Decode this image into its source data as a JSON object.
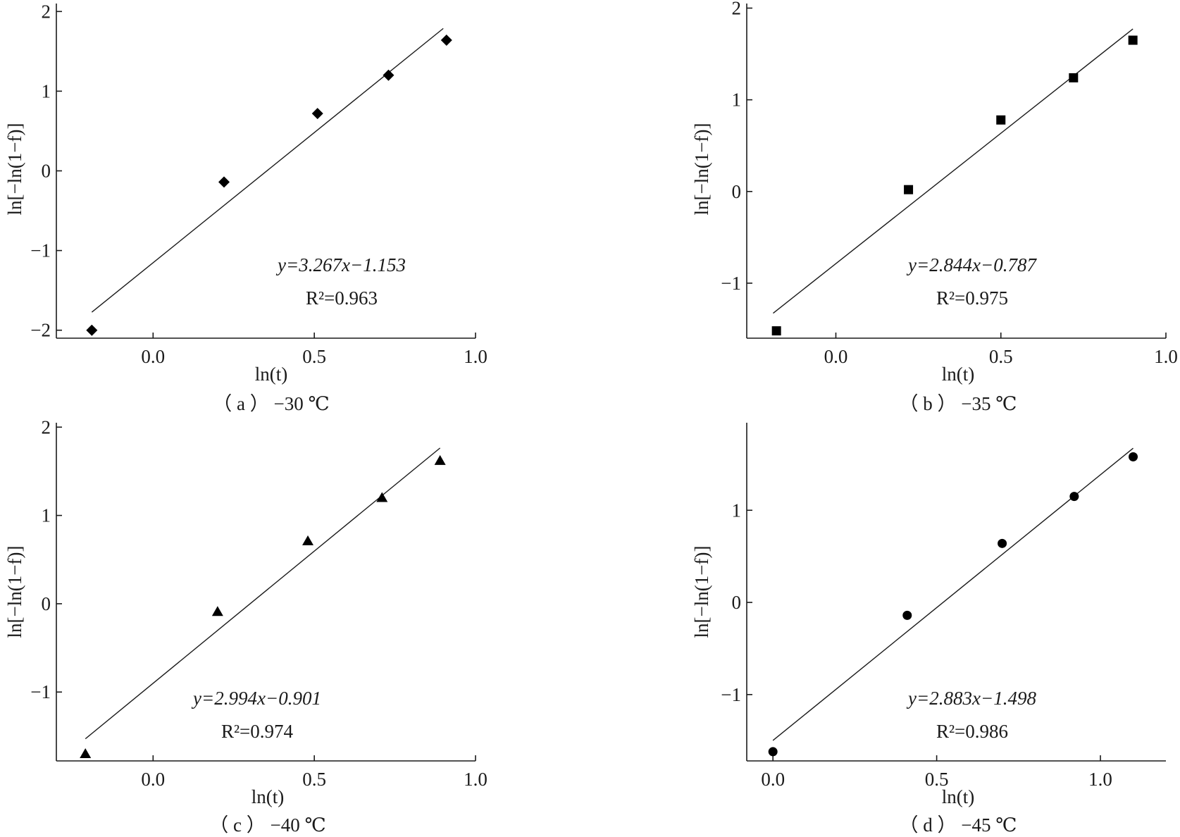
{
  "chart_data": [
    {
      "type": "scatter",
      "marker": "diamond",
      "caption": "（ a ） −30 ℃",
      "xlabel": "ln(t)",
      "ylabel": "ln[−ln(1−f)]",
      "xlim": [
        -0.3,
        1.0
      ],
      "ylim": [
        -2.1,
        2.1
      ],
      "xticks": [
        0.0,
        0.5,
        1.0
      ],
      "xtick_labels": [
        "0.0",
        "0.5",
        "1.0"
      ],
      "yticks": [
        -2,
        -1,
        0,
        1,
        2
      ],
      "ytick_labels": [
        "−2",
        "−1",
        "0",
        "1",
        "2"
      ],
      "points": [
        {
          "x": -0.19,
          "y": -2.0
        },
        {
          "x": 0.22,
          "y": -0.14
        },
        {
          "x": 0.51,
          "y": 0.72
        },
        {
          "x": 0.73,
          "y": 1.2
        },
        {
          "x": 0.91,
          "y": 1.64
        }
      ],
      "fit": {
        "slope": 3.267,
        "intercept": -1.153,
        "x_range": [
          -0.19,
          0.9
        ]
      },
      "equation": "y=3.267x−1.153",
      "r2_label": "R²=0.963",
      "grid": false
    },
    {
      "type": "scatter",
      "marker": "square",
      "caption": "（ b ） −35 ℃",
      "xlabel": "ln(t)",
      "ylabel": "ln[−ln(1−f)]",
      "xlim": [
        -0.27,
        1.0
      ],
      "ylim": [
        -1.6,
        2.05
      ],
      "xticks": [
        0.0,
        0.5,
        1.0
      ],
      "xtick_labels": [
        "0.0",
        "0.5",
        "1.0"
      ],
      "yticks": [
        -1,
        0,
        1,
        2
      ],
      "ytick_labels": [
        "−1",
        "0",
        "1",
        "2"
      ],
      "points": [
        {
          "x": -0.18,
          "y": -1.52
        },
        {
          "x": 0.22,
          "y": 0.02
        },
        {
          "x": 0.5,
          "y": 0.78
        },
        {
          "x": 0.72,
          "y": 1.24
        },
        {
          "x": 0.9,
          "y": 1.65
        }
      ],
      "fit": {
        "slope": 2.844,
        "intercept": -0.787,
        "x_range": [
          -0.19,
          0.9
        ]
      },
      "equation": "y=2.844x−0.787",
      "r2_label": "R²=0.975",
      "grid": false
    },
    {
      "type": "scatter",
      "marker": "triangle",
      "caption": "（ c ） −40 ℃",
      "xlabel": "ln(t)",
      "ylabel": "ln[−ln(1−f)]",
      "xlim": [
        -0.3,
        1.0
      ],
      "ylim": [
        -1.78,
        2.05
      ],
      "xticks": [
        0.0,
        0.5,
        1.0
      ],
      "xtick_labels": [
        "0.0",
        "0.5",
        "1.0"
      ],
      "yticks": [
        -1,
        0,
        1,
        2
      ],
      "ytick_labels": [
        "−1",
        "0",
        "1",
        "2"
      ],
      "points": [
        {
          "x": -0.21,
          "y": -1.7
        },
        {
          "x": 0.2,
          "y": -0.09
        },
        {
          "x": 0.48,
          "y": 0.71
        },
        {
          "x": 0.71,
          "y": 1.2
        },
        {
          "x": 0.89,
          "y": 1.62
        }
      ],
      "fit": {
        "slope": 2.994,
        "intercept": -0.901,
        "x_range": [
          -0.21,
          0.89
        ]
      },
      "equation": "y=2.994x−0.901",
      "r2_label": "R²=0.974",
      "grid": false
    },
    {
      "type": "scatter",
      "marker": "circle",
      "caption": "（ d ） −45 ℃",
      "xlabel": "ln(t)",
      "ylabel": "ln[−ln(1−f)]",
      "xlim": [
        -0.08,
        1.2
      ],
      "ylim": [
        -1.72,
        1.95
      ],
      "xticks": [
        0.0,
        0.5,
        1.0
      ],
      "xtick_labels": [
        "0.0",
        "0.5",
        "1.0"
      ],
      "yticks": [
        -1,
        0,
        1
      ],
      "ytick_labels": [
        "−1",
        "0",
        "1"
      ],
      "points": [
        {
          "x": 0.0,
          "y": -1.62
        },
        {
          "x": 0.41,
          "y": -0.14
        },
        {
          "x": 0.7,
          "y": 0.64
        },
        {
          "x": 0.92,
          "y": 1.15
        },
        {
          "x": 1.1,
          "y": 1.58
        }
      ],
      "fit": {
        "slope": 2.883,
        "intercept": -1.498,
        "x_range": [
          0.0,
          1.1
        ]
      },
      "equation": "y=2.883x−1.498",
      "r2_label": "R²=0.986",
      "grid": false
    }
  ]
}
